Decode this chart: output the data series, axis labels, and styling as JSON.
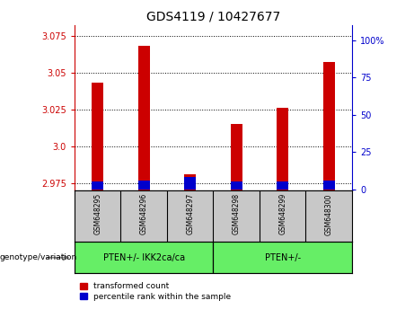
{
  "title": "GDS4119 / 10427677",
  "samples": [
    "GSM648295",
    "GSM648296",
    "GSM648297",
    "GSM648298",
    "GSM648299",
    "GSM648300"
  ],
  "transformed_count": [
    3.043,
    3.068,
    2.981,
    3.015,
    3.026,
    3.057
  ],
  "percentile_rank": [
    5,
    6,
    8,
    5,
    5,
    6
  ],
  "ylim_left": [
    2.97,
    3.082
  ],
  "yticks_left": [
    2.975,
    3.0,
    3.025,
    3.05,
    3.075
  ],
  "yticks_right": [
    0,
    25,
    50,
    75,
    100
  ],
  "ylim_right": [
    -1.1,
    110
  ],
  "groups": [
    {
      "label": "PTEN+/- IKK2ca/ca",
      "color": "#7FFF7F"
    },
    {
      "label": "PTEN+/-",
      "color": "#7FFF7F"
    }
  ],
  "bar_color_red": "#CC0000",
  "bar_color_blue": "#0000CC",
  "background_color": "#FFFFFF",
  "left_axis_color": "#CC0000",
  "right_axis_color": "#0000CC",
  "bar_width": 0.25,
  "legend_red": "transformed count",
  "legend_blue": "percentile rank within the sample",
  "xlabel_left": "genotype/variation",
  "tick_fontsize": 7,
  "title_fontsize": 10,
  "sample_box_color": "#C8C8C8",
  "green_color": "#66EE66"
}
